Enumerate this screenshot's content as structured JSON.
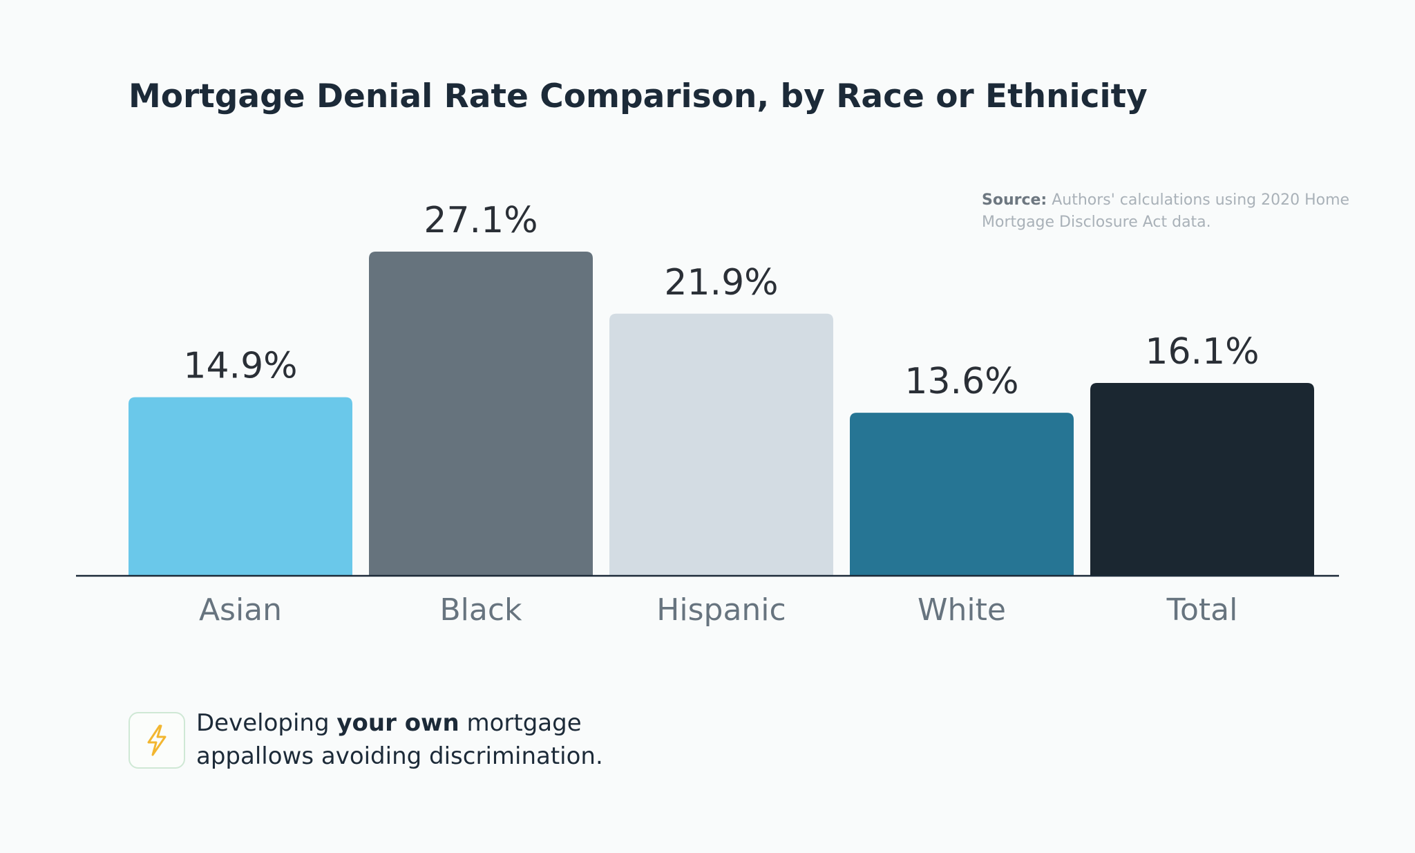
{
  "chart_data": {
    "type": "bar",
    "title": "Mortgage Denial Rate Comparison, by Race or Ethnicity",
    "categories": [
      "Asian",
      "Black",
      "Hispanic",
      "White",
      "Total"
    ],
    "values": [
      14.9,
      27.1,
      21.9,
      13.6,
      16.1
    ],
    "value_labels": [
      "14.9%",
      "27.1%",
      "21.9%",
      "13.6%",
      "16.1%"
    ],
    "bar_colors": [
      "#6ac8ea",
      "#66737d",
      "#d3dce3",
      "#267594",
      "#1b2731"
    ],
    "xlabel": "",
    "ylabel": "",
    "ylim": [
      0,
      27.1
    ],
    "grid": false,
    "legend": "none"
  },
  "source": {
    "label": "Source:",
    "text": "Authors' calculations using 2020 Home Mortgage Disclosure Act data."
  },
  "footer": {
    "icon": "lightning-bolt-icon",
    "icon_color": "#f2b630",
    "text_before": "Developing ",
    "text_bold": "your own",
    "text_after": " mortgage",
    "text_line2": "appallows avoiding discrimination."
  },
  "colors": {
    "background": "#f9fbfb",
    "title": "#1c2a38",
    "axis": "#1c2a38"
  }
}
